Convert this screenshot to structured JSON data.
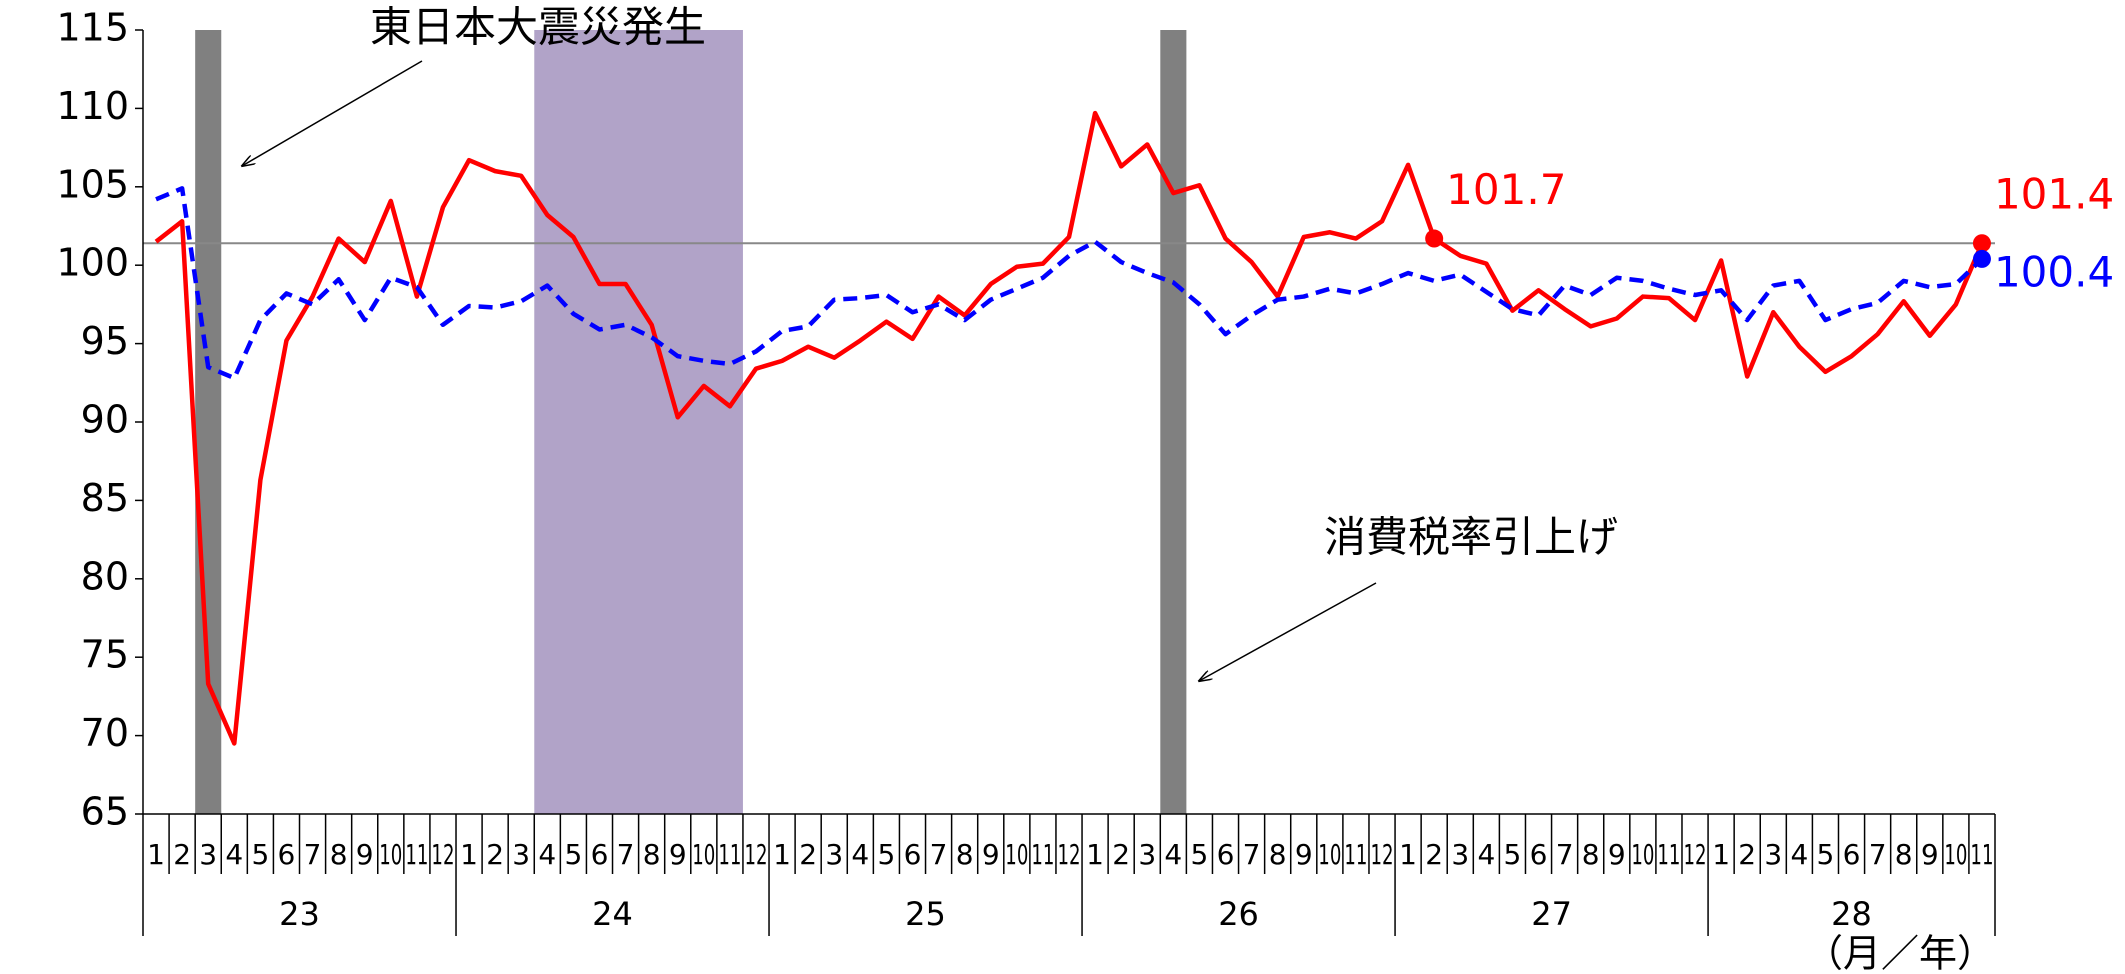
{
  "chart_data": {
    "type": "line",
    "categories": [
      "1",
      "2",
      "3",
      "4",
      "5",
      "6",
      "7",
      "8",
      "9",
      "10",
      "11",
      "12",
      "1",
      "2",
      "3",
      "4",
      "5",
      "6",
      "7",
      "8",
      "9",
      "10",
      "11",
      "12",
      "1",
      "2",
      "3",
      "4",
      "5",
      "6",
      "7",
      "8",
      "9",
      "10",
      "11",
      "12",
      "1",
      "2",
      "3",
      "4",
      "5",
      "6",
      "7",
      "8",
      "9",
      "10",
      "11",
      "12",
      "1",
      "2",
      "3",
      "4",
      "5",
      "6",
      "7",
      "8",
      "9",
      "10",
      "11",
      "12",
      "1",
      "2",
      "3",
      "4",
      "5",
      "6",
      "7",
      "8",
      "9",
      "10",
      "11"
    ],
    "year_labels": [
      "23",
      "24",
      "25",
      "26",
      "27",
      "28"
    ],
    "x_label": "（月／年）",
    "series": [
      {
        "color": "#ff0000",
        "dash": false,
        "values": [
          101.5,
          102.8,
          73.3,
          69.5,
          86.3,
          95.2,
          98,
          101.7,
          100.2,
          104.1,
          98,
          103.7,
          106.7,
          106,
          105.7,
          103.2,
          101.8,
          98.8,
          98.8,
          96.2,
          90.3,
          92.3,
          91,
          93.4,
          93.9,
          94.8,
          94.1,
          95.2,
          96.4,
          95.3,
          98,
          96.8,
          98.8,
          99.9,
          100.1,
          101.8,
          109.7,
          106.3,
          107.7,
          104.6,
          105.1,
          101.7,
          100.2,
          98,
          101.8,
          102.1,
          101.7,
          102.8,
          106.4,
          101.7,
          100.6,
          100.1,
          97.1,
          98.4,
          97.2,
          96.1,
          96.6,
          98,
          97.9,
          96.5,
          100.3,
          92.9,
          97,
          94.8,
          93.2,
          94.2,
          95.6,
          97.7,
          95.5,
          97.5,
          101.4
        ]
      },
      {
        "color": "#0000ff",
        "dash": true,
        "values": [
          104.2,
          104.9,
          93.5,
          92.8,
          96.5,
          98.2,
          97.5,
          99.1,
          96.5,
          99.2,
          98.6,
          96.2,
          97.4,
          97.3,
          97.7,
          98.7,
          96.9,
          95.9,
          96.2,
          95.4,
          94.2,
          93.9,
          93.7,
          94.5,
          95.8,
          96.1,
          97.8,
          97.9,
          98.1,
          97,
          97.5,
          96.5,
          97.8,
          98.5,
          99.2,
          100.6,
          101.5,
          100.2,
          99.5,
          98.9,
          97.5,
          95.6,
          96.8,
          97.8,
          98,
          98.5,
          98.2,
          98.8,
          99.5,
          99,
          99.4,
          98.3,
          97.2,
          96.8,
          98.7,
          98.1,
          99.2,
          99,
          98.5,
          98.1,
          98.4,
          96.5,
          98.7,
          99,
          96.5,
          97.2,
          97.6,
          99,
          98.6,
          98.8,
          100.4
        ]
      }
    ],
    "point_labels": [
      {
        "series": 0,
        "index": 49
      },
      {
        "series": 0,
        "index": 70
      },
      {
        "series": 1,
        "index": 70
      }
    ],
    "reference_line": 101.4,
    "bands": [
      {
        "from": 2,
        "to": 2,
        "color": "#808080"
      },
      {
        "from": 15,
        "to": 22,
        "color": "#b1a3c8"
      },
      {
        "from": 39,
        "to": 39,
        "color": "#808080"
      }
    ],
    "annotations": [
      "東日本大震災発生",
      "消費税率引上げ"
    ],
    "ylim": [
      65,
      115
    ],
    "yticks": [
      65,
      70,
      75,
      80,
      85,
      90,
      95,
      100,
      105,
      110,
      115
    ],
    "grid": false
  }
}
